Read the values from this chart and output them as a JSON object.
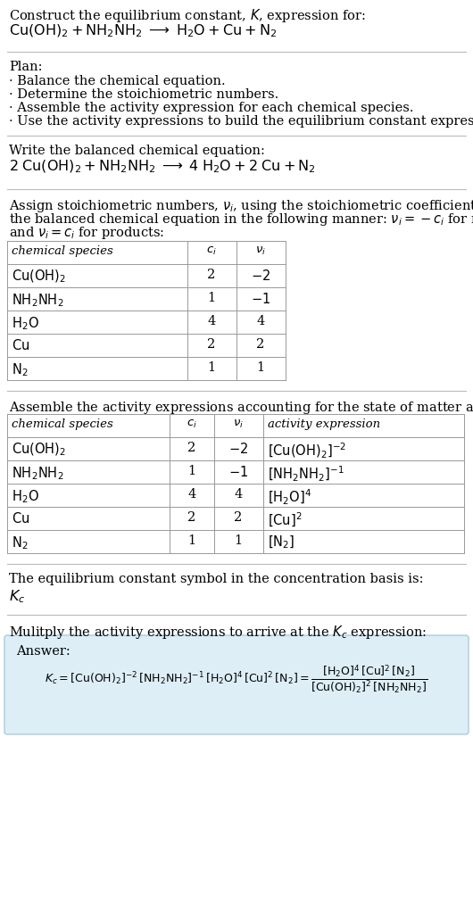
{
  "bg_color": "#ffffff",
  "text_color": "#000000",
  "title_line1": "Construct the equilibrium constant, $K$, expression for:",
  "title_line2": "$\\mathrm{Cu(OH)_2 + NH_2NH_2 \\;\\longrightarrow\\; H_2O + Cu + N_2}$",
  "plan_header": "Plan:",
  "plan_items": [
    "· Balance the chemical equation.",
    "· Determine the stoichiometric numbers.",
    "· Assemble the activity expression for each chemical species.",
    "· Use the activity expressions to build the equilibrium constant expression."
  ],
  "balanced_header": "Write the balanced chemical equation:",
  "balanced_eq": "$\\mathrm{2\\;Cu(OH)_2 + NH_2NH_2 \\;\\longrightarrow\\; 4\\;H_2O + 2\\;Cu + N_2}$",
  "stoich_header1": "Assign stoichiometric numbers, $\\nu_i$, using the stoichiometric coefficients, $c_i$, from",
  "stoich_header2": "the balanced chemical equation in the following manner: $\\nu_i = -c_i$ for reactants",
  "stoich_header3": "and $\\nu_i = c_i$ for products:",
  "table1_cols": [
    "chemical species",
    "$c_i$",
    "$\\nu_i$"
  ],
  "table1_data": [
    [
      "$\\mathrm{Cu(OH)_2}$",
      "2",
      "$-2$"
    ],
    [
      "$\\mathrm{NH_2NH_2}$",
      "1",
      "$-1$"
    ],
    [
      "$\\mathrm{H_2O}$",
      "4",
      "4"
    ],
    [
      "$\\mathrm{Cu}$",
      "2",
      "2"
    ],
    [
      "$\\mathrm{N_2}$",
      "1",
      "1"
    ]
  ],
  "activity_header": "Assemble the activity expressions accounting for the state of matter and $\\nu_i$:",
  "table2_cols": [
    "chemical species",
    "$c_i$",
    "$\\nu_i$",
    "activity expression"
  ],
  "table2_data": [
    [
      "$\\mathrm{Cu(OH)_2}$",
      "2",
      "$-2$",
      "$[\\mathrm{Cu(OH)_2}]^{-2}$"
    ],
    [
      "$\\mathrm{NH_2NH_2}$",
      "1",
      "$-1$",
      "$[\\mathrm{NH_2NH_2}]^{-1}$"
    ],
    [
      "$\\mathrm{H_2O}$",
      "4",
      "4",
      "$[\\mathrm{H_2O}]^{4}$"
    ],
    [
      "$\\mathrm{Cu}$",
      "2",
      "2",
      "$[\\mathrm{Cu}]^{2}$"
    ],
    [
      "$\\mathrm{N_2}$",
      "1",
      "1",
      "$[\\mathrm{N_2}]$"
    ]
  ],
  "kc_header": "The equilibrium constant symbol in the concentration basis is:",
  "kc_symbol": "$K_c$",
  "multiply_header": "Mulitply the activity expressions to arrive at the $K_c$ expression:",
  "answer_box_color": "#ddeef6",
  "answer_box_border": "#aaccdd",
  "answer_label": "Answer:",
  "font_size": 10.5,
  "font_size_small": 9.5,
  "font_size_eq": 11.5
}
